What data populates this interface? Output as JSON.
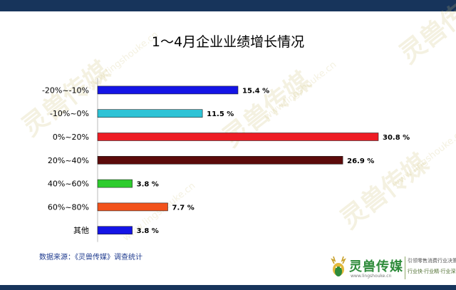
{
  "chart_data": {
    "type": "bar",
    "orientation": "horizontal",
    "title": "1～4月企业业绩增长情况",
    "categories": [
      "-20%~-10%",
      "-10%~0%",
      "0%~20%",
      "20%~40%",
      "40%~60%",
      "60%~80%",
      "其他"
    ],
    "values": [
      15.4,
      11.5,
      30.8,
      26.9,
      3.8,
      7.7,
      3.8
    ],
    "value_labels": [
      "15.4 %",
      "11.5 %",
      "30.8 %",
      "26.9 %",
      "3.8 %",
      "7.7 %",
      "3.8 %"
    ],
    "bar_colors": [
      "#1414e6",
      "#2ec3d6",
      "#ee1c24",
      "#5c0b0b",
      "#2ecc2e",
      "#f2521c",
      "#1414e6"
    ],
    "xlim": [
      0,
      30.8
    ],
    "xlabel": "",
    "ylabel": "",
    "grid": false,
    "legend": "none"
  },
  "source": "数据来源：《灵兽传媒》调查统计",
  "logo": {
    "name": "灵兽传媒",
    "url": "www.lingshouke.cn",
    "slogan_1": "引领零售消费行业决策者",
    "slogan_2": "行业快·行业精·行业深"
  },
  "watermark": {
    "name": "灵兽传媒",
    "url": "www.lingshouke.cn"
  },
  "colors": {
    "frame": "#17345b",
    "watermark": "#cdbe78",
    "logo_green": "#2e8b3a",
    "source_text": "#1f3b8f"
  }
}
